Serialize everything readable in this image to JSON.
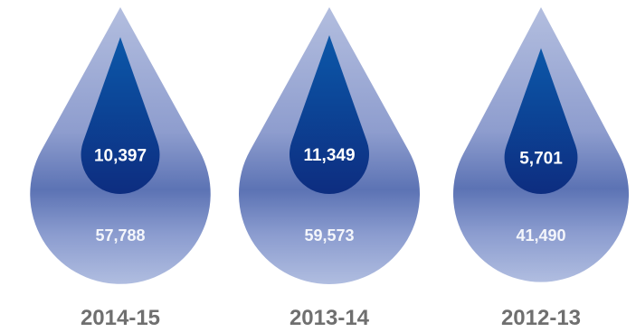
{
  "chart_data": {
    "type": "proportional-drop",
    "categories": [
      "2014-15",
      "2013-14",
      "2012-13"
    ],
    "series": [
      {
        "values": [
          57788,
          59573,
          41490
        ]
      },
      {
        "values": [
          10397,
          11349,
          5701
        ]
      }
    ],
    "value_labels_outer": [
      "57,788",
      "59,573",
      "41,490"
    ],
    "value_labels_inner": [
      "10,397",
      "11,349",
      "5,701"
    ],
    "colors": {
      "outer_top": "#b3bedf",
      "outer_band": "#5c73b4",
      "outer_bottom": "#b0bde0",
      "inner_top": "#0c58a9",
      "inner_bottom": "#0d2d80",
      "year_text": "#6f6f6f"
    }
  }
}
